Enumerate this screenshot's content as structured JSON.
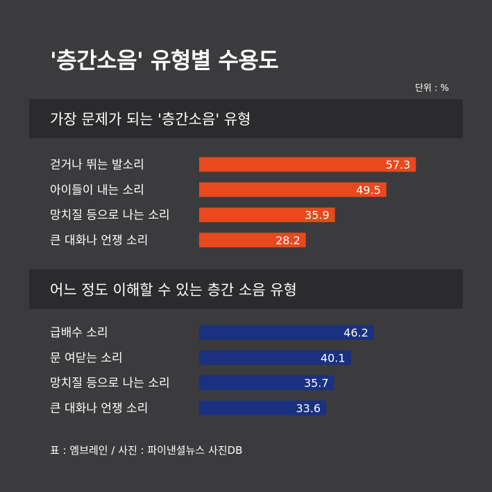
{
  "title": "'층간소음' 유형별 수용도",
  "unit": "단위 : %",
  "source": "표 : 엠브레인 / 사진 : 파이낸셜뉴스 사진DB",
  "colors": {
    "background": "#3b3b3d",
    "header_bg": "#2b2b2d",
    "series1": "#e8491d",
    "series2": "#1a3080"
  },
  "chart_data": [
    {
      "type": "bar",
      "orientation": "horizontal",
      "title": "가장 문제가 되는 '층간소음' 유형",
      "categories": [
        "걷거나 뛰는 발소리",
        "아이들이 내는 소리",
        "망치질 등으로 나는 소리",
        "큰 대화나 언쟁 소리"
      ],
      "values": [
        57.3,
        49.5,
        35.9,
        28.2
      ],
      "color": "#e8491d",
      "xlim": [
        0,
        100
      ]
    },
    {
      "type": "bar",
      "orientation": "horizontal",
      "title": "어느 정도 이해할 수 있는 층간 소음 유형",
      "categories": [
        "급배수 소리",
        "문 여닫는 소리",
        "망치질 등으로 나는 소리",
        "큰 대화나 언쟁 소리"
      ],
      "values": [
        46.2,
        40.1,
        35.7,
        33.6
      ],
      "color": "#1a3080",
      "xlim": [
        0,
        100
      ]
    }
  ]
}
